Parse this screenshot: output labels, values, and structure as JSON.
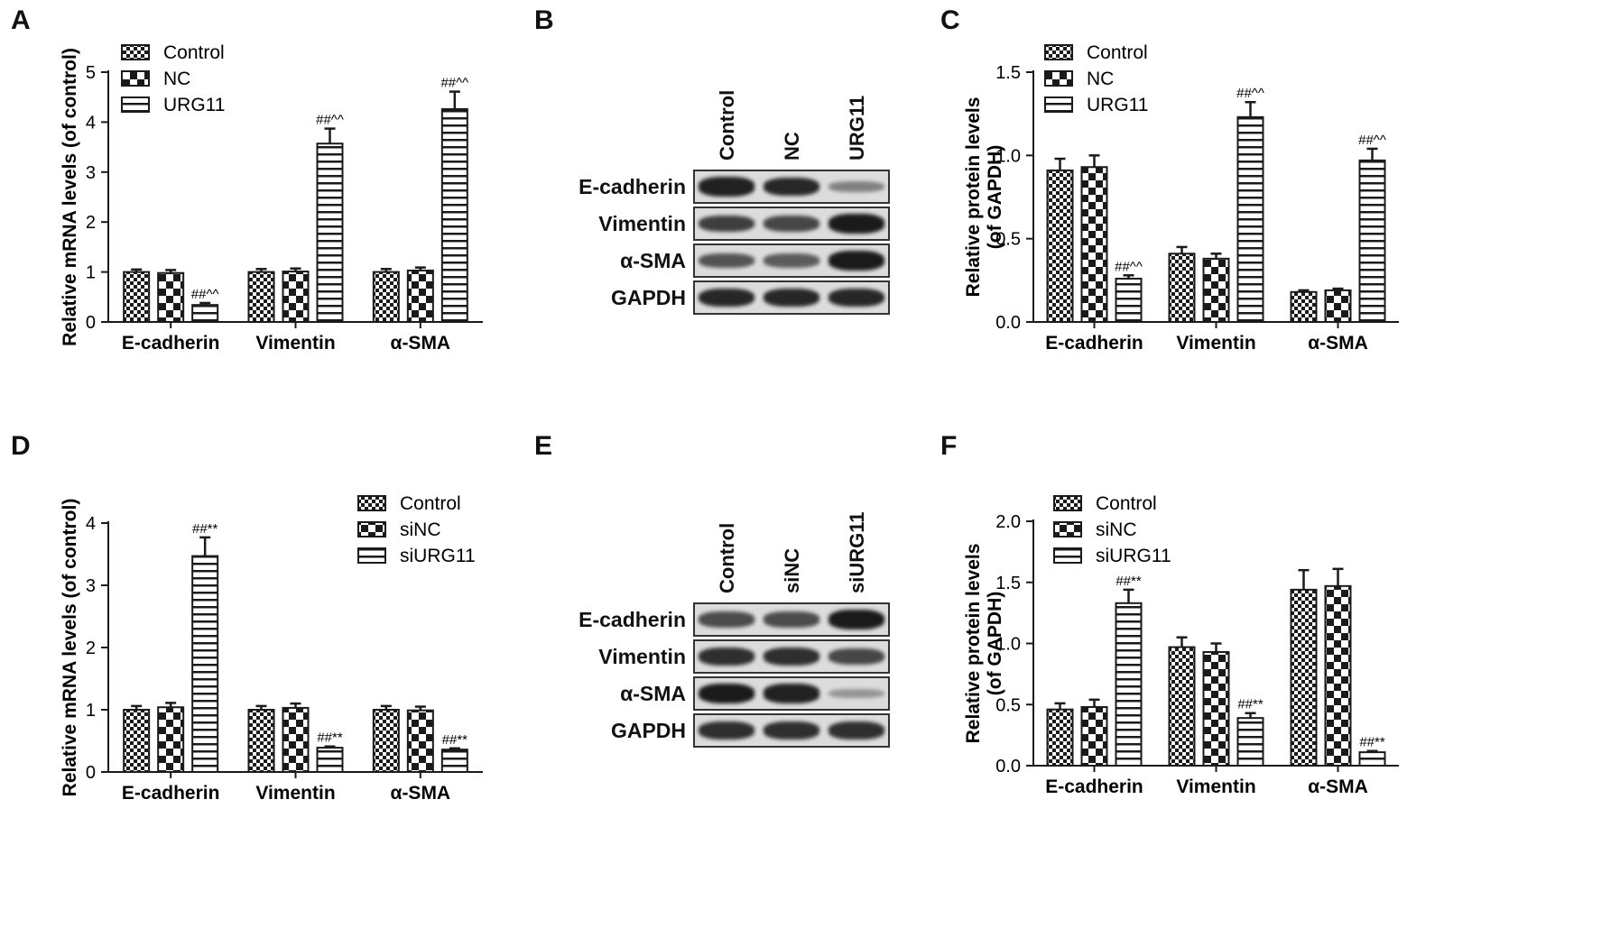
{
  "panels": {
    "A": "A",
    "B": "B",
    "C": "C",
    "D": "D",
    "E": "E",
    "F": "F"
  },
  "colors": {
    "ink": "#1a1a1a",
    "bar_fill": "#ffffff",
    "blot_bg": "#dcdcdc",
    "band": "#1a1a1a"
  },
  "blots": [
    {
      "id": "B",
      "lanes": [
        "Control",
        "NC",
        "URG11"
      ],
      "rows": [
        {
          "label": "E-cadherin",
          "intensity": [
            0.95,
            0.9,
            0.3
          ]
        },
        {
          "label": "Vimentin",
          "intensity": [
            0.75,
            0.7,
            1.0
          ]
        },
        {
          "label": "α-SMA",
          "intensity": [
            0.6,
            0.55,
            1.0
          ]
        },
        {
          "label": "GAPDH",
          "intensity": [
            0.9,
            0.9,
            0.9
          ]
        }
      ]
    },
    {
      "id": "E",
      "lanes": [
        "Control",
        "siNC",
        "siURG11"
      ],
      "rows": [
        {
          "label": "E-cadherin",
          "intensity": [
            0.65,
            0.65,
            1.0
          ]
        },
        {
          "label": "Vimentin",
          "intensity": [
            0.85,
            0.85,
            0.7
          ]
        },
        {
          "label": "α-SMA",
          "intensity": [
            1.0,
            0.95,
            0.15
          ]
        },
        {
          "label": "GAPDH",
          "intensity": [
            0.85,
            0.85,
            0.85
          ]
        }
      ]
    }
  ],
  "chart_data": [
    {
      "id": "A",
      "type": "bar",
      "ylabel": "Relative mRNA levels (of control)",
      "ylim": [
        0,
        5
      ],
      "yticks": [
        0,
        1,
        2,
        3,
        4,
        5
      ],
      "ytick_labels": [
        "0",
        "1",
        "2",
        "3",
        "4",
        "5"
      ],
      "categories": [
        "E-cadherin",
        "Vimentin",
        "α-SMA"
      ],
      "legend": "top-left",
      "series": [
        {
          "name": "Control",
          "pattern": "checker",
          "values": [
            1.0,
            1.0,
            1.0
          ],
          "errors": [
            0.05,
            0.06,
            0.06
          ]
        },
        {
          "name": "NC",
          "pattern": "bigchecker",
          "values": [
            0.98,
            1.01,
            1.03
          ],
          "errors": [
            0.06,
            0.06,
            0.06
          ]
        },
        {
          "name": "URG11",
          "pattern": "hstripe",
          "values": [
            0.34,
            3.57,
            4.26
          ],
          "errors": [
            0.04,
            0.3,
            0.35
          ]
        }
      ],
      "annotations": [
        [
          "",
          "",
          ""
        ],
        [
          "",
          "",
          ""
        ],
        [
          "##^^",
          "##^^",
          "##^^"
        ]
      ]
    },
    {
      "id": "C",
      "type": "bar",
      "ylabel": "Relative protein levels (of GAPDH)",
      "ylabel_lines": [
        "Relative protein levels",
        "(of GAPDH)"
      ],
      "ylim": [
        0,
        1.5
      ],
      "yticks": [
        0,
        0.5,
        1.0,
        1.5
      ],
      "ytick_labels": [
        "0.0",
        "0.5",
        "1.0",
        "1.5"
      ],
      "categories": [
        "E-cadherin",
        "Vimentin",
        "α-SMA"
      ],
      "legend": "top-left",
      "series": [
        {
          "name": "Control",
          "pattern": "checker",
          "values": [
            0.91,
            0.41,
            0.18
          ],
          "errors": [
            0.07,
            0.04,
            0.01
          ]
        },
        {
          "name": "NC",
          "pattern": "bigchecker",
          "values": [
            0.93,
            0.38,
            0.19
          ],
          "errors": [
            0.07,
            0.03,
            0.01
          ]
        },
        {
          "name": "URG11",
          "pattern": "hstripe",
          "values": [
            0.26,
            1.23,
            0.97
          ],
          "errors": [
            0.02,
            0.09,
            0.07
          ]
        }
      ],
      "annotations": [
        [
          "",
          "",
          ""
        ],
        [
          "",
          "",
          ""
        ],
        [
          "##^^",
          "##^^",
          "##^^"
        ]
      ]
    },
    {
      "id": "D",
      "type": "bar",
      "ylabel": "Relative mRNA levels (of control)",
      "ylim": [
        0,
        4
      ],
      "yticks": [
        0,
        1,
        2,
        3,
        4
      ],
      "ytick_labels": [
        "0",
        "1",
        "2",
        "3",
        "4"
      ],
      "categories": [
        "E-cadherin",
        "Vimentin",
        "α-SMA"
      ],
      "legend": "top-right",
      "series": [
        {
          "name": "Control",
          "pattern": "checker",
          "values": [
            1.0,
            1.0,
            1.0
          ],
          "errors": [
            0.06,
            0.06,
            0.06
          ]
        },
        {
          "name": "siNC",
          "pattern": "bigchecker",
          "values": [
            1.04,
            1.03,
            0.99
          ],
          "errors": [
            0.07,
            0.07,
            0.06
          ]
        },
        {
          "name": "siURG11",
          "pattern": "hstripe",
          "values": [
            3.47,
            0.39,
            0.36
          ],
          "errors": [
            0.3,
            0.02,
            0.02
          ]
        }
      ],
      "annotations": [
        [
          "",
          "",
          ""
        ],
        [
          "",
          "",
          ""
        ],
        [
          "##**",
          "##**",
          "##**"
        ]
      ]
    },
    {
      "id": "F",
      "type": "bar",
      "ylabel": "Relative protein levels (of GAPDH)",
      "ylabel_lines": [
        "Relative protein levels",
        "(of GAPDH)"
      ],
      "ylim": [
        0,
        2.0
      ],
      "yticks": [
        0,
        0.5,
        1.0,
        1.5,
        2.0
      ],
      "ytick_labels": [
        "0.0",
        "0.5",
        "1.0",
        "1.5",
        "2.0"
      ],
      "categories": [
        "E-cadherin",
        "Vimentin",
        "α-SMA"
      ],
      "legend": "top-left",
      "series": [
        {
          "name": "Control",
          "pattern": "checker",
          "values": [
            0.46,
            0.97,
            1.44
          ],
          "errors": [
            0.05,
            0.08,
            0.16
          ]
        },
        {
          "name": "siNC",
          "pattern": "bigchecker",
          "values": [
            0.48,
            0.93,
            1.47
          ],
          "errors": [
            0.06,
            0.07,
            0.14
          ]
        },
        {
          "name": "siURG11",
          "pattern": "hstripe",
          "values": [
            1.33,
            0.39,
            0.11
          ],
          "errors": [
            0.11,
            0.04,
            0.01
          ]
        }
      ],
      "annotations": [
        [
          "",
          "",
          ""
        ],
        [
          "",
          "",
          ""
        ],
        [
          "##**",
          "##**",
          "##**"
        ]
      ]
    }
  ]
}
